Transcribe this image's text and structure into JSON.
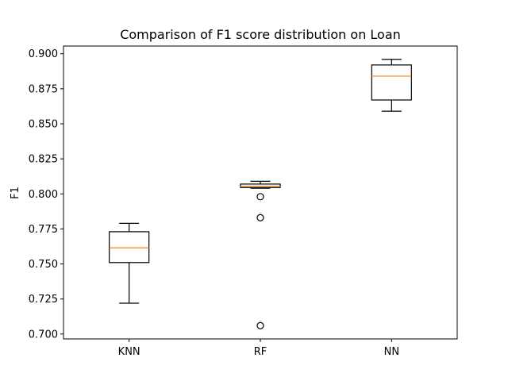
{
  "chart_data": {
    "type": "box",
    "title": "Comparison of F1 score distribution on Loan",
    "xlabel": "",
    "ylabel": "F1",
    "ylim": [
      0.6965,
      0.9055
    ],
    "yticks": [
      "0.700",
      "0.725",
      "0.750",
      "0.775",
      "0.800",
      "0.825",
      "0.850",
      "0.875",
      "0.900"
    ],
    "ytick_values": [
      0.7,
      0.725,
      0.75,
      0.775,
      0.8,
      0.825,
      0.85,
      0.875,
      0.9
    ],
    "categories": [
      "KNN",
      "RF",
      "NN"
    ],
    "boxes": [
      {
        "category": "KNN",
        "whisker_low": 0.722,
        "q1": 0.751,
        "median": 0.7615,
        "q3": 0.773,
        "whisker_high": 0.779,
        "outliers": []
      },
      {
        "category": "RF",
        "whisker_low": 0.804,
        "q1": 0.8045,
        "median": 0.8055,
        "q3": 0.807,
        "whisker_high": 0.809,
        "outliers": [
          0.798,
          0.783,
          0.706
        ]
      },
      {
        "category": "NN",
        "whisker_low": 0.859,
        "q1": 0.867,
        "median": 0.884,
        "q3": 0.892,
        "whisker_high": 0.896,
        "outliers": []
      }
    ],
    "grid": false,
    "colors": {
      "box": "#000000",
      "median": "#ff7f0e",
      "background": "#ffffff"
    }
  }
}
